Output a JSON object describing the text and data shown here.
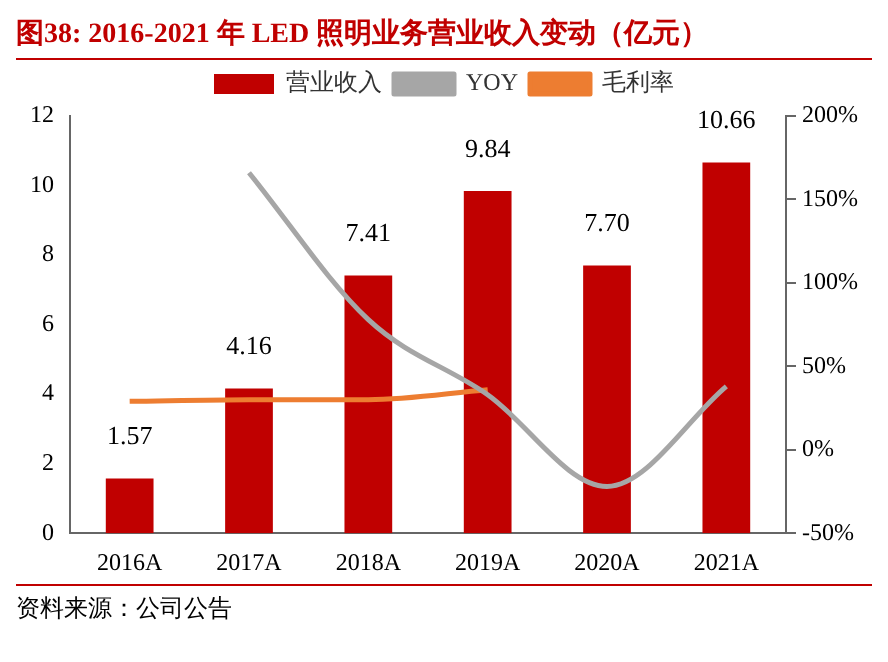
{
  "chart_data": {
    "type": "bar",
    "title": "图38:   2016-2021 年 LED 照明业务营业收入变动（亿元）",
    "categories": [
      "2016A",
      "2017A",
      "2018A",
      "2019A",
      "2020A",
      "2021A"
    ],
    "series": [
      {
        "name": "营业收入",
        "color": "#c00000",
        "values": [
          1.57,
          4.16,
          7.41,
          9.84,
          7.7,
          10.66
        ],
        "value_labels": [
          "1.57",
          "4.16",
          "7.41",
          "9.84",
          "7.70",
          "10.66"
        ]
      },
      {
        "name": "YOY",
        "type": "line",
        "axis": "y2",
        "color": "#a6a6a6",
        "values": [
          null,
          166,
          78,
          33,
          -22,
          38
        ]
      },
      {
        "name": "毛利率",
        "type": "line",
        "axis": "y2",
        "color": "#ed7d31",
        "values": [
          29,
          30,
          30,
          36,
          null,
          null
        ]
      }
    ],
    "ylim": [
      0,
      12
    ],
    "yticks": [
      0,
      2,
      4,
      6,
      8,
      10,
      12
    ],
    "y2lim": [
      -50,
      200
    ],
    "y2ticks": [
      {
        "value": -50,
        "label": "-50%"
      },
      {
        "value": 0,
        "label": "0%"
      },
      {
        "value": 50,
        "label": "50%"
      },
      {
        "value": 100,
        "label": "100%"
      },
      {
        "value": 150,
        "label": "150%"
      },
      {
        "value": 200,
        "label": "200%"
      }
    ],
    "legend": "top",
    "grid": false,
    "marker": "none",
    "annotations": [
      "资料来源：公司公告"
    ]
  }
}
